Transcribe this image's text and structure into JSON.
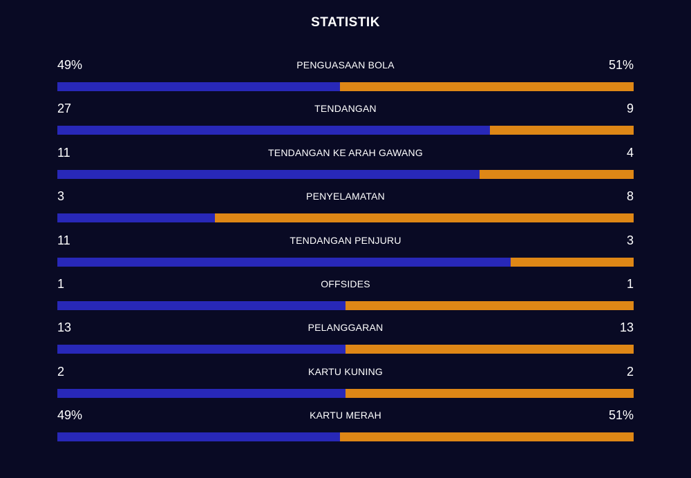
{
  "header": {
    "title": "STATISTIK"
  },
  "colors": {
    "background": "#090a24",
    "home_bar": "#2828b8",
    "away_bar": "#de8716",
    "text": "#ffffff"
  },
  "stats": [
    {
      "label": "PENGUASAAN BOLA",
      "left": "49%",
      "right": "51%",
      "left_share": 0.49
    },
    {
      "label": "TENDANGAN",
      "left": "27",
      "right": "9",
      "left_share": 0.75
    },
    {
      "label": "TENDANGAN KE ARAH GAWANG",
      "left": "11",
      "right": "4",
      "left_share": 0.733
    },
    {
      "label": "PENYELAMATAN",
      "left": "3",
      "right": "8",
      "left_share": 0.273
    },
    {
      "label": "TENDANGAN PENJURU",
      "left": "11",
      "right": "3",
      "left_share": 0.786
    },
    {
      "label": "OFFSIDES",
      "left": "1",
      "right": "1",
      "left_share": 0.5
    },
    {
      "label": "PELANGGARAN",
      "left": "13",
      "right": "13",
      "left_share": 0.5
    },
    {
      "label": "KARTU KUNING",
      "left": "2",
      "right": "2",
      "left_share": 0.5
    },
    {
      "label": "KARTU MERAH",
      "left": "49%",
      "right": "51%",
      "left_share": 0.49
    }
  ]
}
